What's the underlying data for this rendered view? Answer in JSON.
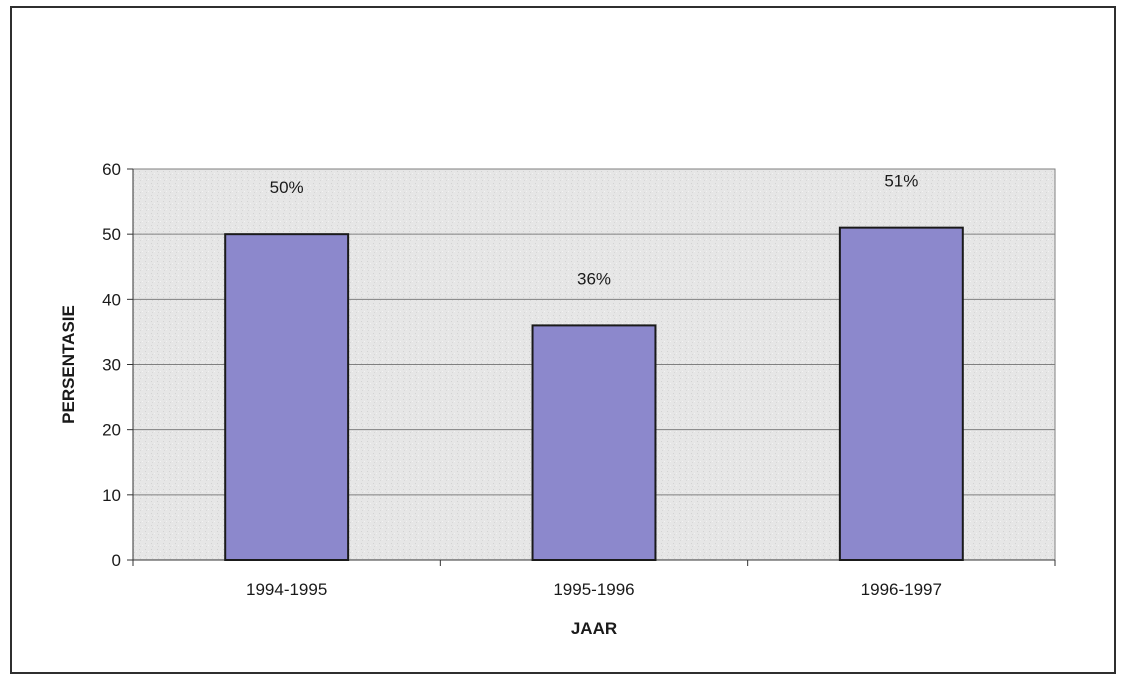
{
  "chart_data": {
    "type": "bar",
    "title": "",
    "xlabel": "JAAR",
    "ylabel": "PERSENTASIE",
    "categories": [
      "1994-1995",
      "1995-1996",
      "1996-1997"
    ],
    "values": [
      50,
      36,
      51
    ],
    "data_labels": [
      "50%",
      "36%",
      "51%"
    ],
    "ylim": [
      0,
      60
    ],
    "yticks": [
      0,
      10,
      20,
      30,
      40,
      50,
      60
    ],
    "grid": true,
    "legend": "none",
    "colors": {
      "bar": "#8c88cc",
      "bar_edge": "#1a1a1a",
      "plot_background": "#e4e4e4",
      "gridline": "#7f7f7f",
      "frame": "#2f2f2f"
    }
  }
}
